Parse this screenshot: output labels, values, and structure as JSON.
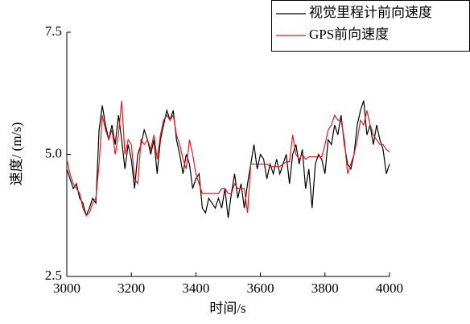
{
  "chart_data": {
    "type": "line",
    "xlabel": "时间/s",
    "ylabel": "速度/ (m/s)",
    "xlim": [
      3000,
      4000
    ],
    "ylim": [
      2.5,
      7.5
    ],
    "xticks": [
      3000,
      3200,
      3400,
      3600,
      3800,
      4000
    ],
    "yticks": [
      2.5,
      {
        "value": 5,
        "label": "5.0"
      },
      7.5
    ],
    "legend": "upper right",
    "x": [
      3000,
      3010,
      3020,
      3030,
      3040,
      3050,
      3060,
      3070,
      3080,
      3090,
      3100,
      3110,
      3120,
      3130,
      3140,
      3150,
      3160,
      3170,
      3180,
      3190,
      3200,
      3210,
      3220,
      3230,
      3240,
      3250,
      3260,
      3270,
      3280,
      3290,
      3300,
      3310,
      3320,
      3330,
      3340,
      3350,
      3360,
      3370,
      3380,
      3390,
      3400,
      3410,
      3420,
      3430,
      3440,
      3450,
      3460,
      3470,
      3480,
      3490,
      3500,
      3510,
      3520,
      3530,
      3540,
      3550,
      3560,
      3570,
      3580,
      3590,
      3600,
      3610,
      3620,
      3630,
      3640,
      3650,
      3660,
      3670,
      3680,
      3690,
      3700,
      3710,
      3720,
      3730,
      3740,
      3750,
      3760,
      3770,
      3780,
      3790,
      3800,
      3810,
      3820,
      3830,
      3840,
      3850,
      3860,
      3870,
      3880,
      3890,
      3900,
      3910,
      3920,
      3930,
      3940,
      3950,
      3960,
      3970,
      3980,
      3990,
      4000
    ],
    "series": [
      {
        "name": "视觉里程计前向速度",
        "color": "#000000",
        "values": [
          4.7,
          4.5,
          4.3,
          4.4,
          4.1,
          4.0,
          3.75,
          3.9,
          4.1,
          4.0,
          5.5,
          6.0,
          5.6,
          5.3,
          5.6,
          5.2,
          5.8,
          5.3,
          4.7,
          5.2,
          4.9,
          4.3,
          5.0,
          5.2,
          5.5,
          5.3,
          5.0,
          5.3,
          4.6,
          5.3,
          5.6,
          5.9,
          5.7,
          5.9,
          5.3,
          5.0,
          4.6,
          5.0,
          4.8,
          4.3,
          4.5,
          4.6,
          3.9,
          3.8,
          4.1,
          4.0,
          3.9,
          4.1,
          3.9,
          4.3,
          3.7,
          4.2,
          4.6,
          4.1,
          4.4,
          3.9,
          4.4,
          4.8,
          5.2,
          4.7,
          5.0,
          4.9,
          4.5,
          4.8,
          4.6,
          4.9,
          4.6,
          4.8,
          5.0,
          4.4,
          5.0,
          5.2,
          4.8,
          5.1,
          4.3,
          4.7,
          3.9,
          4.8,
          5.0,
          4.9,
          4.6,
          5.3,
          5.2,
          5.6,
          5.4,
          5.8,
          5.2,
          4.8,
          4.7,
          5.0,
          5.6,
          5.9,
          6.1,
          5.4,
          5.6,
          5.2,
          5.6,
          5.3,
          5.1,
          4.6,
          4.8
        ]
      },
      {
        "name": "GPS前向速度",
        "color": "#e31a1c",
        "values": [
          4.9,
          4.6,
          4.4,
          4.3,
          4.2,
          3.9,
          3.75,
          3.8,
          4.0,
          4.1,
          4.8,
          5.8,
          5.5,
          5.3,
          5.5,
          5.0,
          5.4,
          6.1,
          5.0,
          5.3,
          5.2,
          4.5,
          4.4,
          5.3,
          5.2,
          5.3,
          5.1,
          5.4,
          4.9,
          5.4,
          5.7,
          5.8,
          5.7,
          5.8,
          5.4,
          5.2,
          4.9,
          4.7,
          5.3,
          5.0,
          4.6,
          4.4,
          4.2,
          4.2,
          4.2,
          4.2,
          4.2,
          4.2,
          4.3,
          4.3,
          4.2,
          4.2,
          4.4,
          4.3,
          4.3,
          4.3,
          3.8,
          4.8,
          4.8,
          4.8,
          4.8,
          4.8,
          4.8,
          4.75,
          4.75,
          4.75,
          4.75,
          4.8,
          4.85,
          4.85,
          5.4,
          5.0,
          4.9,
          5.0,
          4.9,
          4.95,
          4.95,
          4.95,
          4.95,
          4.95,
          5.2,
          5.5,
          5.6,
          5.8,
          5.7,
          5.7,
          5.3,
          4.6,
          4.8,
          5.0,
          5.3,
          5.7,
          5.6,
          5.9,
          5.6,
          5.4,
          5.3,
          5.2,
          5.2,
          5.1,
          5.05
        ]
      }
    ]
  }
}
